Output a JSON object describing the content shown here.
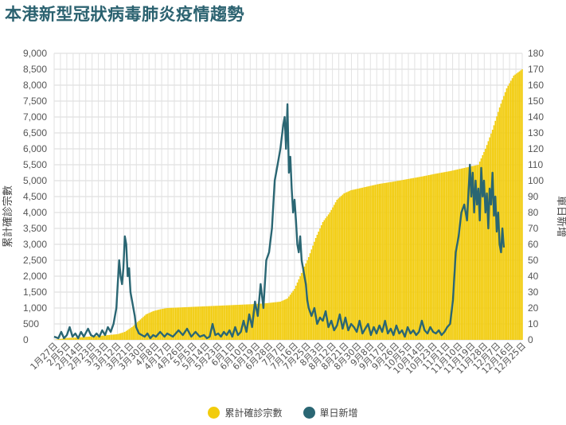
{
  "chart_data": {
    "type": "line",
    "title": "本港新型冠狀病毒肺炎疫情趨勢",
    "xlabel": "",
    "y_left_label": "累計確診宗數",
    "y_right_label": "單日新增",
    "y_left_ticks": [
      "0",
      "500",
      "1,000",
      "1,500",
      "2,000",
      "2,500",
      "3,000",
      "3,500",
      "4,000",
      "4,500",
      "5,000",
      "5,500",
      "6,000",
      "6,500",
      "7,000",
      "7,500",
      "8,000",
      "8,500",
      "9,000"
    ],
    "y_right_ticks": [
      "0",
      "10",
      "20",
      "30",
      "40",
      "50",
      "60",
      "70",
      "80",
      "90",
      "100",
      "110",
      "120",
      "130",
      "140",
      "150",
      "160",
      "170",
      "180"
    ],
    "y_left_lim": [
      0,
      9000
    ],
    "y_right_lim": [
      0,
      180
    ],
    "x_tick_labels": [
      "1月27日",
      "2月5日",
      "2月14日",
      "2月23日",
      "3月3日",
      "3月12日",
      "3月21日",
      "3月30日",
      "4月8日",
      "4月17日",
      "4月26日",
      "5月5日",
      "5月14日",
      "5月23日",
      "6月1日",
      "6月10日",
      "6月19日",
      "6月28日",
      "7月7日",
      "7月16日",
      "7月25日",
      "8月3日",
      "8月12日",
      "8月21日",
      "8月30日",
      "9月8日",
      "9月17日",
      "9月26日",
      "10月5日",
      "10月14日",
      "10月23日",
      "11月1日",
      "11月10日",
      "11月19日",
      "11月28日",
      "12月7日",
      "12月16日",
      "12月25日"
    ],
    "grid": true,
    "legend_position": "bottom-center",
    "series": [
      {
        "name": "累計確診宗數",
        "type": "bar",
        "axis": "left",
        "color": "#f2cc0c",
        "points": [
          [
            0,
            0
          ],
          [
            9,
            60
          ],
          [
            18,
            80
          ],
          [
            27,
            110
          ],
          [
            36,
            140
          ],
          [
            45,
            180
          ],
          [
            50,
            250
          ],
          [
            55,
            400
          ],
          [
            60,
            600
          ],
          [
            65,
            800
          ],
          [
            70,
            900
          ],
          [
            75,
            960
          ],
          [
            80,
            1000
          ],
          [
            90,
            1020
          ],
          [
            100,
            1040
          ],
          [
            110,
            1060
          ],
          [
            120,
            1080
          ],
          [
            130,
            1100
          ],
          [
            140,
            1120
          ],
          [
            150,
            1150
          ],
          [
            160,
            1200
          ],
          [
            165,
            1300
          ],
          [
            170,
            1600
          ],
          [
            175,
            2100
          ],
          [
            180,
            2600
          ],
          [
            185,
            3200
          ],
          [
            190,
            3700
          ],
          [
            195,
            4000
          ],
          [
            200,
            4400
          ],
          [
            205,
            4600
          ],
          [
            210,
            4700
          ],
          [
            215,
            4750
          ],
          [
            220,
            4800
          ],
          [
            230,
            4900
          ],
          [
            240,
            4970
          ],
          [
            250,
            5050
          ],
          [
            260,
            5130
          ],
          [
            270,
            5220
          ],
          [
            280,
            5300
          ],
          [
            290,
            5400
          ],
          [
            300,
            5500
          ],
          [
            305,
            6000
          ],
          [
            310,
            6600
          ],
          [
            315,
            7300
          ],
          [
            320,
            7900
          ],
          [
            325,
            8300
          ],
          [
            331,
            8500
          ]
        ]
      },
      {
        "name": "單日新增",
        "type": "line",
        "axis": "right",
        "color": "#2a6673",
        "points": [
          [
            0,
            2
          ],
          [
            3,
            1
          ],
          [
            5,
            5
          ],
          [
            7,
            1
          ],
          [
            9,
            3
          ],
          [
            11,
            8
          ],
          [
            13,
            2
          ],
          [
            15,
            4
          ],
          [
            17,
            1
          ],
          [
            19,
            5
          ],
          [
            21,
            2
          ],
          [
            24,
            7
          ],
          [
            26,
            3
          ],
          [
            28,
            2
          ],
          [
            30,
            4
          ],
          [
            32,
            2
          ],
          [
            34,
            6
          ],
          [
            36,
            3
          ],
          [
            38,
            8
          ],
          [
            40,
            5
          ],
          [
            42,
            10
          ],
          [
            44,
            20
          ],
          [
            45,
            35
          ],
          [
            46,
            50
          ],
          [
            47,
            40
          ],
          [
            48,
            35
          ],
          [
            49,
            45
          ],
          [
            50,
            65
          ],
          [
            51,
            60
          ],
          [
            52,
            40
          ],
          [
            53,
            45
          ],
          [
            54,
            30
          ],
          [
            55,
            25
          ],
          [
            56,
            20
          ],
          [
            57,
            15
          ],
          [
            58,
            8
          ],
          [
            60,
            4
          ],
          [
            62,
            3
          ],
          [
            64,
            2
          ],
          [
            66,
            4
          ],
          [
            68,
            1
          ],
          [
            70,
            3
          ],
          [
            72,
            2
          ],
          [
            75,
            5
          ],
          [
            78,
            2
          ],
          [
            80,
            4
          ],
          [
            84,
            2
          ],
          [
            88,
            6
          ],
          [
            91,
            3
          ],
          [
            94,
            7
          ],
          [
            97,
            2
          ],
          [
            100,
            5
          ],
          [
            103,
            2
          ],
          [
            106,
            3
          ],
          [
            108,
            1
          ],
          [
            110,
            2
          ],
          [
            112,
            10
          ],
          [
            114,
            3
          ],
          [
            116,
            4
          ],
          [
            118,
            2
          ],
          [
            120,
            5
          ],
          [
            122,
            3
          ],
          [
            124,
            6
          ],
          [
            126,
            2
          ],
          [
            128,
            8
          ],
          [
            130,
            3
          ],
          [
            132,
            5
          ],
          [
            134,
            12
          ],
          [
            136,
            5
          ],
          [
            138,
            16
          ],
          [
            140,
            8
          ],
          [
            142,
            24
          ],
          [
            144,
            15
          ],
          [
            146,
            35
          ],
          [
            148,
            20
          ],
          [
            150,
            50
          ],
          [
            152,
            55
          ],
          [
            154,
            70
          ],
          [
            156,
            100
          ],
          [
            158,
            110
          ],
          [
            160,
            120
          ],
          [
            162,
            135
          ],
          [
            163,
            140
          ],
          [
            164,
            120
          ],
          [
            165,
            148
          ],
          [
            166,
            105
          ],
          [
            167,
            115
          ],
          [
            168,
            95
          ],
          [
            169,
            80
          ],
          [
            170,
            88
          ],
          [
            171,
            75
          ],
          [
            172,
            60
          ],
          [
            173,
            55
          ],
          [
            174,
            65
          ],
          [
            175,
            50
          ],
          [
            176,
            45
          ],
          [
            177,
            40
          ],
          [
            178,
            35
          ],
          [
            179,
            25
          ],
          [
            180,
            20
          ],
          [
            182,
            15
          ],
          [
            184,
            20
          ],
          [
            186,
            10
          ],
          [
            188,
            14
          ],
          [
            190,
            12
          ],
          [
            192,
            18
          ],
          [
            194,
            8
          ],
          [
            196,
            12
          ],
          [
            198,
            6
          ],
          [
            200,
            9
          ],
          [
            202,
            16
          ],
          [
            204,
            7
          ],
          [
            206,
            14
          ],
          [
            208,
            6
          ],
          [
            210,
            10
          ],
          [
            212,
            8
          ],
          [
            214,
            5
          ],
          [
            216,
            12
          ],
          [
            218,
            4
          ],
          [
            220,
            7
          ],
          [
            222,
            10
          ],
          [
            224,
            3
          ],
          [
            226,
            8
          ],
          [
            228,
            4
          ],
          [
            230,
            9
          ],
          [
            232,
            5
          ],
          [
            234,
            12
          ],
          [
            236,
            4
          ],
          [
            238,
            7
          ],
          [
            240,
            3
          ],
          [
            242,
            9
          ],
          [
            244,
            4
          ],
          [
            246,
            6
          ],
          [
            248,
            2
          ],
          [
            250,
            8
          ],
          [
            252,
            4
          ],
          [
            254,
            6
          ],
          [
            256,
            3
          ],
          [
            258,
            5
          ],
          [
            260,
            12
          ],
          [
            262,
            6
          ],
          [
            264,
            4
          ],
          [
            266,
            8
          ],
          [
            268,
            5
          ],
          [
            270,
            4
          ],
          [
            272,
            6
          ],
          [
            274,
            3
          ],
          [
            276,
            5
          ],
          [
            278,
            8
          ],
          [
            280,
            10
          ],
          [
            282,
            25
          ],
          [
            284,
            55
          ],
          [
            286,
            65
          ],
          [
            288,
            80
          ],
          [
            290,
            85
          ],
          [
            292,
            75
          ],
          [
            294,
            110
          ],
          [
            295,
            90
          ],
          [
            296,
            105
          ],
          [
            297,
            80
          ],
          [
            298,
            100
          ],
          [
            299,
            85
          ],
          [
            300,
            95
          ],
          [
            301,
            75
          ],
          [
            302,
            108
          ],
          [
            303,
            90
          ],
          [
            304,
            100
          ],
          [
            305,
            80
          ],
          [
            306,
            92
          ],
          [
            307,
            70
          ],
          [
            308,
            95
          ],
          [
            309,
            85
          ],
          [
            310,
            105
          ],
          [
            311,
            78
          ],
          [
            312,
            90
          ],
          [
            313,
            68
          ],
          [
            314,
            80
          ],
          [
            315,
            60
          ],
          [
            316,
            55
          ],
          [
            317,
            70
          ],
          [
            318,
            58
          ]
        ]
      }
    ]
  }
}
